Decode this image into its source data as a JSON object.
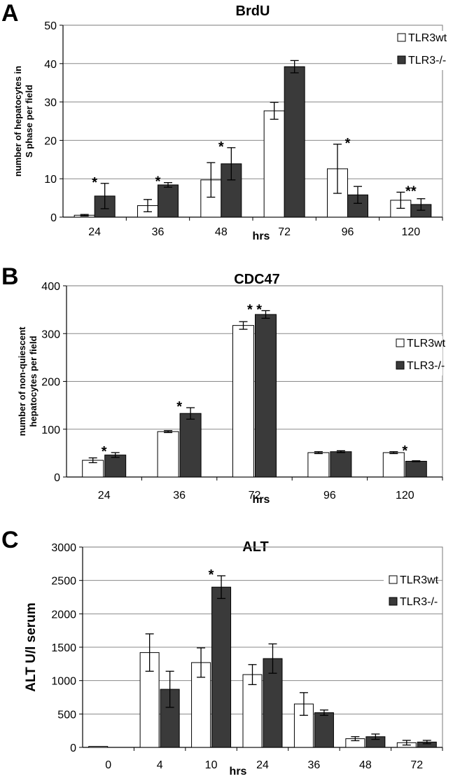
{
  "panels": [
    {
      "letter": "A"
    },
    {
      "letter": "B"
    },
    {
      "letter": "C"
    }
  ],
  "chart_data": [
    {
      "type": "bar",
      "title": "BrdU",
      "xlabel": "hrs",
      "ylabel": "number of hepatocytes in S phase per field",
      "ylim": [
        0,
        50
      ],
      "yticks": [
        0,
        10,
        20,
        30,
        40,
        50
      ],
      "categories": [
        "24",
        "36",
        "48",
        "72",
        "96",
        "120"
      ],
      "series": [
        {
          "name": "TLR3wt",
          "color": "#ffffff",
          "values": [
            0.5,
            3.0,
            9.7,
            27.7,
            12.6,
            4.4
          ],
          "errors": [
            0.2,
            1.6,
            4.5,
            2.2,
            6.4,
            2.1
          ]
        },
        {
          "name": "TLR3-/-",
          "color": "#3a3a3a",
          "values": [
            5.5,
            8.4,
            13.9,
            39.2,
            5.8,
            3.3
          ],
          "errors": [
            3.3,
            0.6,
            4.2,
            1.6,
            2.2,
            1.5
          ]
        }
      ],
      "annotations": [
        "*",
        "*",
        "*",
        "",
        "*",
        "**"
      ],
      "grid": "horizontal",
      "legend": "top-right"
    },
    {
      "type": "bar",
      "title": "CDC47",
      "xlabel": "hrs",
      "ylabel": "number of non-quiescent hepatocytes per field",
      "ylim": [
        0,
        400
      ],
      "yticks": [
        0,
        100,
        200,
        300,
        400
      ],
      "categories": [
        "24",
        "36",
        "72",
        "96",
        "120"
      ],
      "series": [
        {
          "name": "TLR3wt",
          "color": "#ffffff",
          "values": [
            35,
            95,
            317,
            51,
            51
          ],
          "errors": [
            5,
            2,
            8,
            2,
            2
          ]
        },
        {
          "name": "TLR3-/-",
          "color": "#3a3a3a",
          "values": [
            46,
            133,
            340,
            53,
            33
          ],
          "errors": [
            5,
            12,
            8,
            2,
            1
          ]
        }
      ],
      "annotations": [
        "*",
        "*",
        "* *",
        "",
        "*"
      ],
      "grid": "horizontal",
      "legend": "top-right"
    },
    {
      "type": "bar",
      "title": "ALT",
      "xlabel": "hrs",
      "ylabel": "ALT U/l serum",
      "ylim": [
        0,
        3000
      ],
      "yticks": [
        0,
        500,
        1000,
        1500,
        2000,
        2500,
        3000
      ],
      "categories": [
        "0",
        "4",
        "10",
        "24",
        "36",
        "48",
        "72"
      ],
      "series": [
        {
          "name": "TLR3wt",
          "color": "#ffffff",
          "values": [
            15,
            1420,
            1270,
            1090,
            650,
            130,
            70
          ],
          "errors": [
            0,
            280,
            220,
            150,
            170,
            30,
            35
          ]
        },
        {
          "name": "TLR3-/-",
          "color": "#3a3a3a",
          "values": [
            0,
            870,
            2400,
            1330,
            520,
            160,
            80
          ],
          "errors": [
            0,
            270,
            170,
            220,
            40,
            40,
            25
          ]
        }
      ],
      "annotations": [
        "",
        "",
        "*",
        "",
        "",
        "",
        ""
      ],
      "grid": "horizontal",
      "legend": "top-right"
    }
  ]
}
